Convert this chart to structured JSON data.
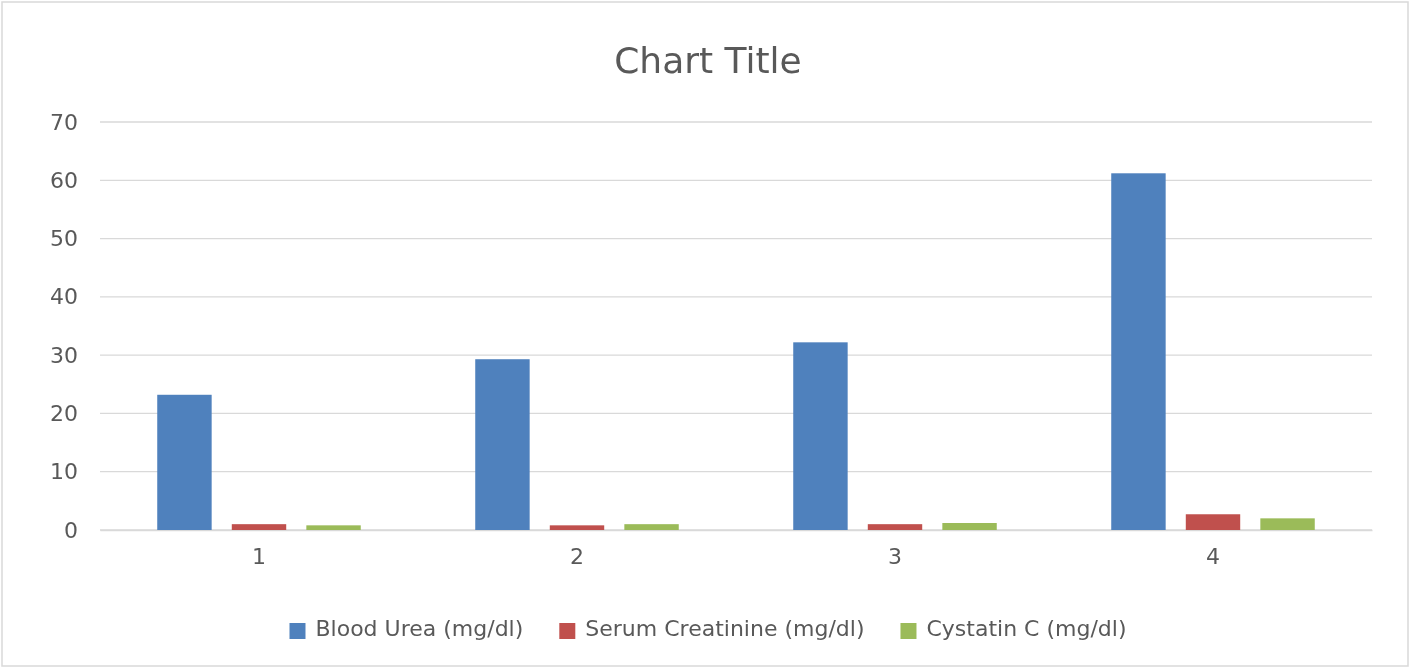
{
  "chart_data": {
    "type": "bar",
    "title": "Chart Title",
    "categories": [
      "1",
      "2",
      "3",
      "4"
    ],
    "series": [
      {
        "name": "Blood Urea (mg/dl)",
        "color": "#4f81bd",
        "values": [
          23.2,
          29.3,
          32.2,
          61.2
        ]
      },
      {
        "name": "Serum Creatinine (mg/dl)",
        "color": "#c0504d",
        "values": [
          1.0,
          0.8,
          1.0,
          2.7
        ]
      },
      {
        "name": "Cystatin C (mg/dl)",
        "color": "#9bbb59",
        "values": [
          0.8,
          1.0,
          1.2,
          2.0
        ]
      }
    ],
    "ylim": [
      0,
      70
    ],
    "yticks": [
      0,
      10,
      20,
      30,
      40,
      50,
      60,
      70
    ],
    "grid": "y",
    "legend": "bottom"
  }
}
